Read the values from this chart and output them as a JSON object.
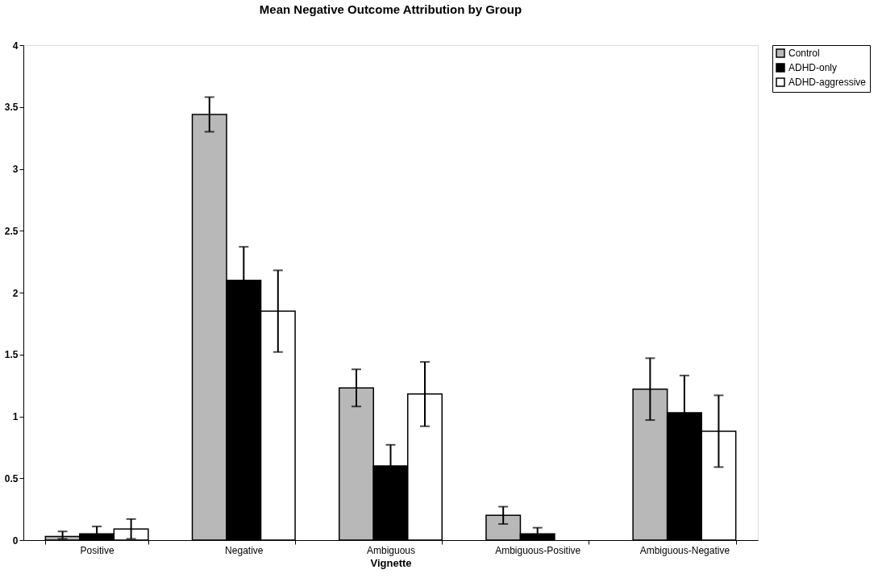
{
  "chart_data": {
    "type": "bar",
    "title": "Mean Negative Outcome Attribution by Group",
    "xlabel": "Vignette",
    "categories": [
      "Positive",
      "Negative",
      "Ambiguous",
      "Ambiguous-Positive",
      "Ambiguous-Negative"
    ],
    "series": [
      {
        "name": "Control",
        "color": "#b8b8b8",
        "values": [
          0.03,
          3.44,
          1.23,
          0.2,
          1.22
        ],
        "errors": [
          [
            0.01,
            0.07
          ],
          0.14,
          0.15,
          0.07,
          0.25
        ]
      },
      {
        "name": "ADHD-only",
        "color": "#000000",
        "values": [
          0.05,
          2.1,
          0.6,
          0.05,
          1.03
        ],
        "errors": [
          [
            0,
            0.11
          ],
          0.27,
          0.17,
          0.05,
          0.3
        ]
      },
      {
        "name": "ADHD-aggressive",
        "color": "#ffffff",
        "values": [
          0.09,
          1.85,
          1.18,
          null,
          0.88
        ],
        "errors": [
          0.08,
          0.33,
          0.26,
          null,
          0.29
        ]
      }
    ],
    "ylim": [
      0,
      4
    ],
    "yticks": [
      0,
      0.5,
      1,
      1.5,
      2,
      2.5,
      3,
      3.5,
      4
    ],
    "grid": false,
    "legend": "right"
  }
}
